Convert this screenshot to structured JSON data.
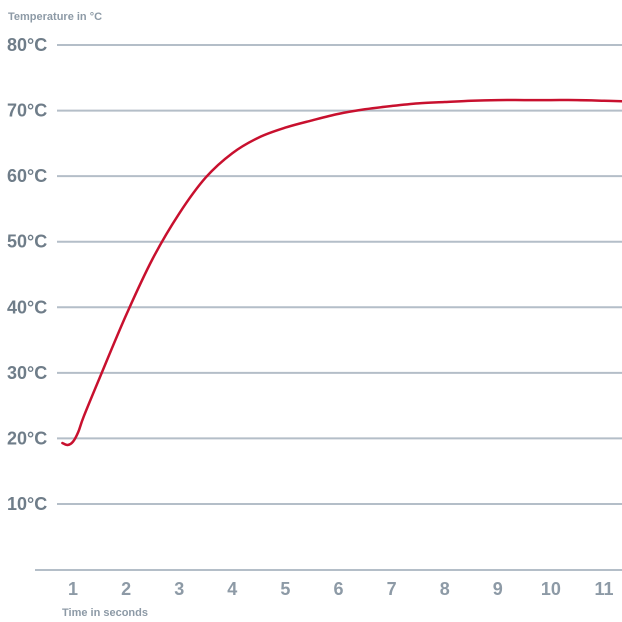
{
  "chart_data": {
    "type": "line",
    "title": "",
    "ylabel": "Temperature in °C",
    "xlabel": "Time in seconds",
    "x_ticks": [
      1,
      2,
      3,
      4,
      5,
      6,
      7,
      8,
      9,
      10,
      11
    ],
    "x_tick_labels": [
      "1",
      "2",
      "3",
      "4",
      "5",
      "6",
      "7",
      "8",
      "9",
      "10",
      "11"
    ],
    "y_ticks": [
      10,
      20,
      30,
      40,
      50,
      60,
      70,
      80
    ],
    "y_tick_labels": [
      "10°C",
      "20°C",
      "30°C",
      "40°C",
      "50°C",
      "60°C",
      "70°C",
      "80°C"
    ],
    "xlim": [
      0.8,
      11.4
    ],
    "ylim": [
      0,
      80
    ],
    "grid": true,
    "legend": "none",
    "series": [
      {
        "x": [
          0.8,
          0.9,
          1.0,
          1.1,
          1.2,
          1.5,
          2.0,
          2.5,
          3.0,
          3.5,
          4.0,
          4.5,
          5.0,
          5.5,
          6.0,
          6.5,
          7.0,
          7.5,
          8.0,
          8.5,
          9.0,
          9.5,
          10.0,
          10.5,
          11.0,
          11.4
        ],
        "y": [
          19.3,
          19.0,
          19.5,
          21.0,
          23.3,
          29.2,
          38.8,
          47.4,
          54.3,
          59.8,
          63.5,
          65.9,
          67.4,
          68.5,
          69.5,
          70.2,
          70.7,
          71.1,
          71.3,
          71.5,
          71.6,
          71.6,
          71.6,
          71.6,
          71.5,
          71.4
        ]
      }
    ],
    "colors": {
      "line": "#c8102e",
      "grid": "#b4bec8",
      "text": "#8d9aa6",
      "text_dark": "#6f7d89"
    }
  }
}
